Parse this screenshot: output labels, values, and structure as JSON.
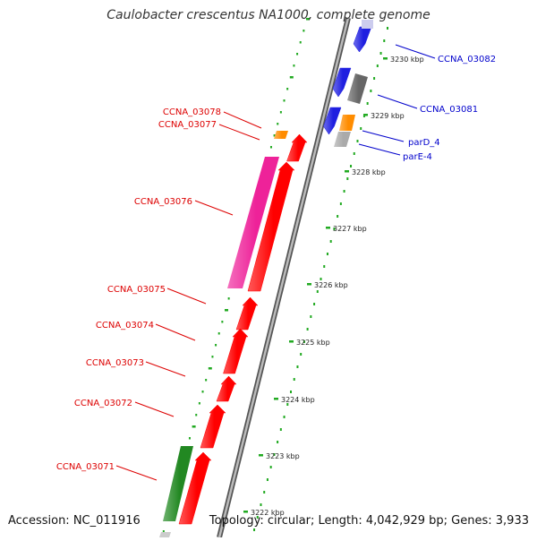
{
  "title": "Caulobacter crescentus NA1000, complete genome",
  "footer": {
    "accession": "Accession: NC_011916",
    "topology": "Topology: circular; Length: 4,042,929 bp; Genes: 3,933"
  },
  "colors": {
    "forward_label": "#0000cc",
    "reverse_label": "#dd0000",
    "backbone": "#888888",
    "tick": "#22aa22"
  },
  "kbp_ticks": [
    "3230 kbp",
    "3229 kbp",
    "3228 kbp",
    "3227 kbp",
    "3226 kbp",
    "3225 kbp",
    "3224 kbp",
    "3223 kbp",
    "3222 kbp"
  ],
  "forward_genes": [
    {
      "name": "CCNA_03082",
      "color": "#1f1fe0"
    },
    {
      "name": "CCNA_03081",
      "color": "#1f1fe0"
    },
    {
      "name": "parD_4",
      "color": "#ff8c00"
    },
    {
      "name": "parE-4",
      "color": "#aaaaaa"
    }
  ],
  "reverse_genes": [
    {
      "name": "CCNA_03078",
      "color": "#ff8c00"
    },
    {
      "name": "CCNA_03077",
      "color": "#ff0000"
    },
    {
      "name": "CCNA_03076",
      "color": "#ee2299"
    },
    {
      "name": "CCNA_03075",
      "color": "#ff0000"
    },
    {
      "name": "CCNA_03074",
      "color": "#ff0000"
    },
    {
      "name": "CCNA_03073",
      "color": "#ff0000"
    },
    {
      "name": "CCNA_03072",
      "color": "#ff0000"
    },
    {
      "name": "CCNA_03071",
      "color": "#228822"
    }
  ]
}
